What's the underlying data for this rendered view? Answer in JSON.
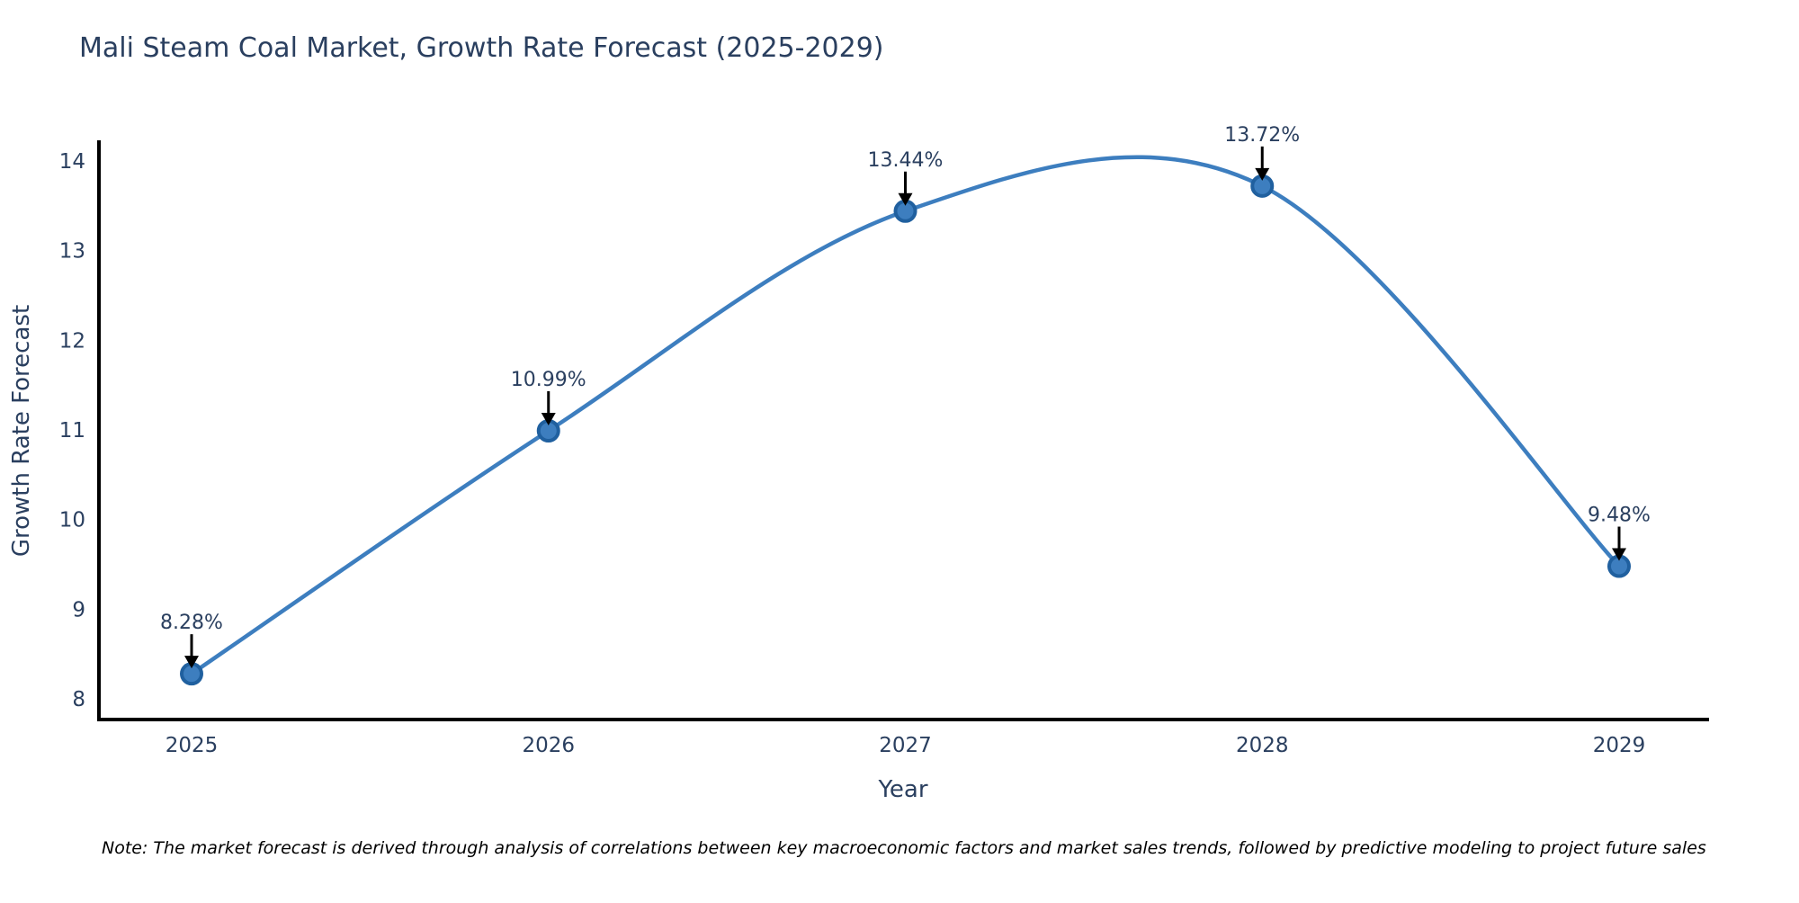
{
  "title": "Mali Steam Coal Market, Growth Rate Forecast (2025-2029)",
  "note": "Note: The market forecast is derived through analysis of correlations between key macroeconomic factors and market sales trends, followed by predictive modeling to project future sales",
  "colors": {
    "line": "#3d7ebf",
    "marker_fill": "#3d7ebf",
    "marker_edge": "#20609f",
    "axis": "#000000",
    "text": "#2a3f5f",
    "annotation_arrow": "#000000"
  },
  "chart_data": {
    "type": "line",
    "title": "Mali Steam Coal Market, Growth Rate Forecast (2025-2029)",
    "xlabel": "Year",
    "ylabel": "Growth Rate Forecast",
    "categories": [
      "2025",
      "2026",
      "2027",
      "2028",
      "2029"
    ],
    "series": [
      {
        "name": "Growth Rate Forecast",
        "values": [
          8.28,
          10.99,
          13.44,
          13.72,
          9.48
        ]
      }
    ],
    "point_labels": [
      "8.28%",
      "10.99%",
      "13.44%",
      "13.72%",
      "9.48%"
    ],
    "yticks": [
      8,
      9,
      10,
      11,
      12,
      13,
      14
    ],
    "ylim": [
      7.77,
      14.21
    ],
    "line_shape": "spline",
    "grid": false,
    "legend": false
  }
}
